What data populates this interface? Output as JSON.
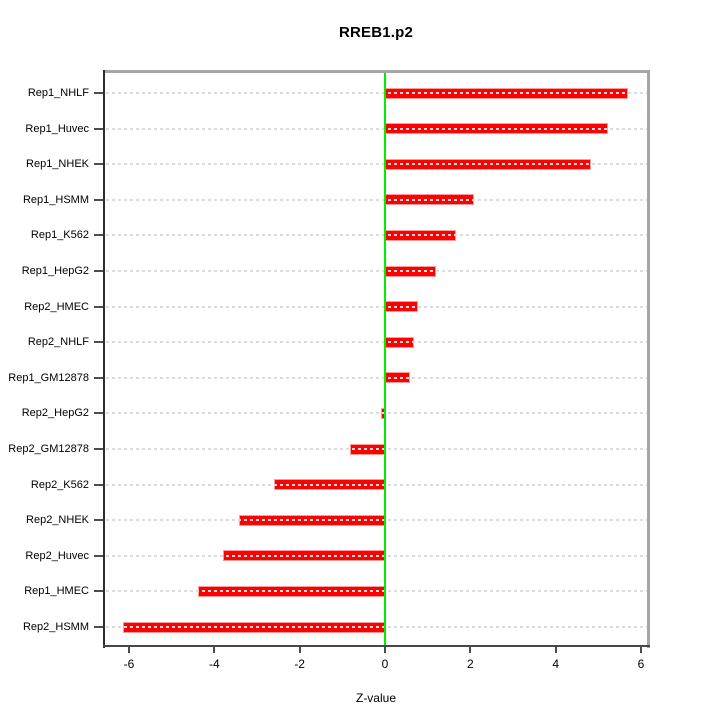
{
  "chart_data": {
    "type": "bar",
    "orientation": "horizontal",
    "title": "RREB1.p2",
    "xlabel": "Z-value",
    "ylabel": "",
    "categories": [
      "Rep1_NHLF",
      "Rep1_Huvec",
      "Rep1_NHEK",
      "Rep1_HSMM",
      "Rep1_K562",
      "Rep1_HepG2",
      "Rep2_HMEC",
      "Rep2_NHLF",
      "Rep1_GM12878",
      "Rep2_HepG2",
      "Rep2_GM12878",
      "Rep2_K562",
      "Rep2_NHEK",
      "Rep2_Huvec",
      "Rep1_HMEC",
      "Rep2_HSMM"
    ],
    "values": [
      5.7,
      5.22,
      4.83,
      2.08,
      1.66,
      1.2,
      0.78,
      0.69,
      0.58,
      -0.1,
      -0.82,
      -2.6,
      -3.42,
      -3.8,
      -4.38,
      -6.14
    ],
    "x_ticks": [
      -6,
      -4,
      -2,
      0,
      2,
      4,
      6
    ],
    "xlim": [
      -6.6,
      6.2
    ],
    "grid": "horizontal dashed line per category",
    "zero_line": true,
    "legend": "none",
    "colors": {
      "bar_fill": "#ff0000",
      "bar_border": "#ff9a9a",
      "zero_line": "#00ee00",
      "gridline": "#dcdcdc",
      "axis_text": "#000000",
      "box_top_right": "#a6a6a6",
      "box_left_bottom": "#3c3c3c"
    }
  }
}
